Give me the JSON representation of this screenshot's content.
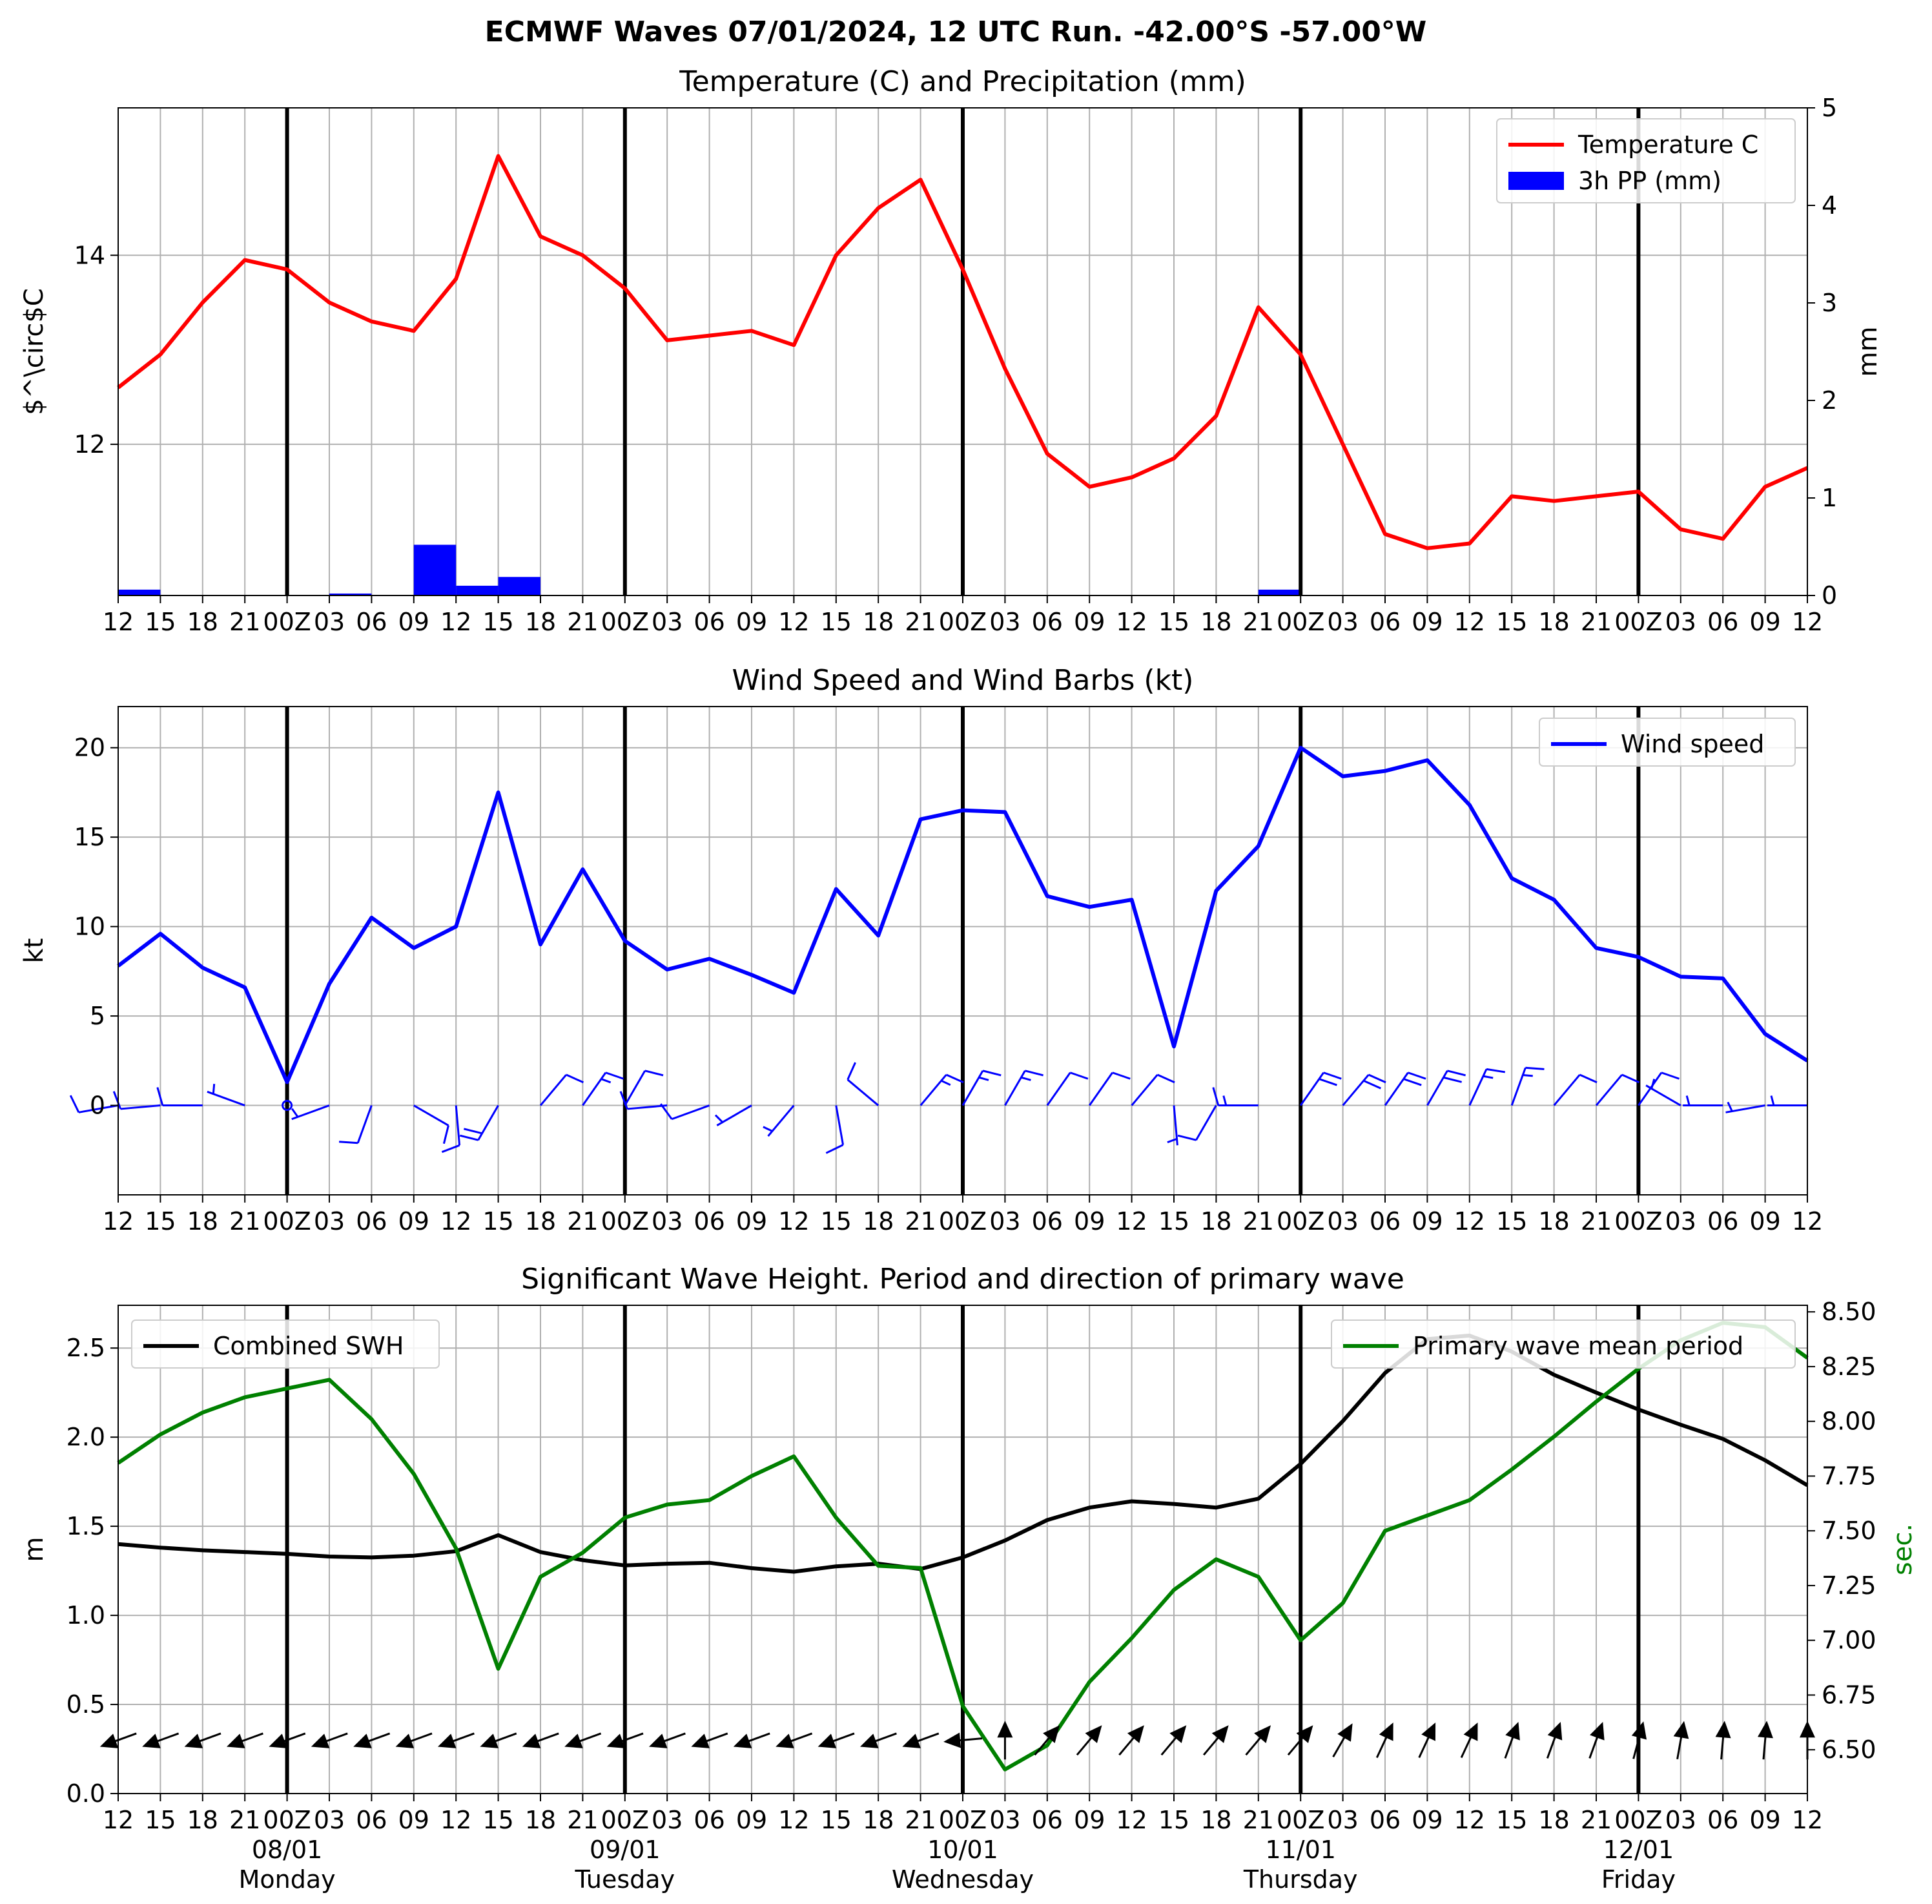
{
  "suptitle": "ECMWF Waves 07/01/2024, 12 UTC Run. -42.00°S -57.00°W",
  "time_ticks": [
    "12",
    "15",
    "18",
    "21",
    "00Z",
    "03",
    "06",
    "09",
    "12",
    "15",
    "18",
    "21",
    "00Z",
    "03",
    "06",
    "09",
    "12",
    "15",
    "18",
    "21",
    "00Z",
    "03",
    "06",
    "09",
    "12",
    "15",
    "18",
    "21",
    "00Z",
    "03",
    "06",
    "09",
    "12",
    "15",
    "18",
    "21",
    "00Z",
    "03",
    "06",
    "09",
    "12"
  ],
  "day_labels": [
    {
      "date": "08/01",
      "day": "Monday"
    },
    {
      "date": "09/01",
      "day": "Tuesday"
    },
    {
      "date": "10/01",
      "day": "Wednesday"
    },
    {
      "date": "11/01",
      "day": "Thursday"
    },
    {
      "date": "12/01",
      "day": "Friday"
    }
  ],
  "chart_data": [
    {
      "type": "line",
      "title": "Temperature (C) and Precipitation (mm)",
      "ylabel": "$^\\circ$C",
      "y2label": "mm",
      "ylim": [
        10.4,
        15.56
      ],
      "yticks": [
        12,
        14
      ],
      "y2lim": [
        0,
        5
      ],
      "y2ticks": [
        0,
        1,
        2,
        3,
        4,
        5
      ],
      "legend_position": "upper-right",
      "grid": true,
      "series": [
        {
          "name": "Temperature C",
          "color": "#ff0000",
          "values": [
            12.6,
            12.95,
            13.5,
            13.95,
            13.85,
            13.5,
            13.3,
            13.2,
            13.75,
            15.05,
            14.2,
            14.0,
            13.65,
            13.1,
            13.15,
            13.2,
            13.05,
            14.0,
            14.5,
            14.8,
            13.85,
            12.8,
            11.9,
            11.55,
            11.65,
            11.85,
            12.3,
            13.45,
            12.95,
            12.0,
            11.05,
            10.9,
            10.95,
            11.45,
            11.4,
            11.45,
            11.5,
            11.1,
            11.0,
            11.55,
            11.75
          ]
        },
        {
          "name": "3h PP (mm)",
          "color": "#0000ff",
          "kind": "bar",
          "values": [
            0.06,
            0,
            0,
            0,
            0,
            0.02,
            0,
            0.52,
            0.1,
            0.19,
            0,
            0,
            0,
            0,
            0,
            0,
            0,
            0,
            0,
            0,
            0,
            0,
            0,
            0,
            0,
            0,
            0,
            0.06,
            0,
            0,
            0,
            0,
            0,
            0,
            0,
            0,
            0,
            0,
            0,
            0,
            0
          ]
        }
      ]
    },
    {
      "type": "line",
      "title": "Wind Speed and Wind Barbs (kt)",
      "ylabel": "kt",
      "ylim": [
        -5,
        22.3
      ],
      "yticks": [
        0,
        5,
        10,
        15,
        20
      ],
      "legend_position": "upper-right",
      "grid": true,
      "series": [
        {
          "name": "Wind speed",
          "color": "#0000ff",
          "values": [
            7.8,
            9.6,
            7.7,
            6.6,
            1.3,
            6.8,
            10.5,
            8.8,
            10.0,
            17.5,
            9.0,
            13.2,
            9.2,
            7.6,
            8.2,
            7.3,
            6.3,
            12.1,
            9.5,
            16.0,
            16.5,
            16.4,
            11.7,
            11.1,
            11.5,
            3.3,
            12.0,
            14.5,
            20.0,
            18.4,
            18.7,
            19.3,
            16.8,
            12.7,
            11.5,
            8.8,
            8.3,
            7.2,
            7.1,
            4.0,
            2.5
          ]
        }
      ],
      "barb_dir_deg": [
        260,
        265,
        270,
        290,
        0,
        250,
        200,
        120,
        175,
        210,
        40,
        35,
        30,
        265,
        250,
        240,
        220,
        170,
        310,
        40,
        30,
        30,
        35,
        35,
        40,
        175,
        210,
        270,
        35,
        40,
        35,
        30,
        25,
        20,
        40,
        40,
        35,
        300,
        270,
        260,
        270
      ]
    },
    {
      "type": "line",
      "title": "Significant Wave Height. Period and direction of primary wave",
      "ylabel": "m",
      "y2label": "sec.",
      "ylim": [
        0,
        2.74
      ],
      "yticks": [
        0.0,
        0.5,
        1.0,
        1.5,
        2.0,
        2.5
      ],
      "y2lim": [
        6.3,
        8.53
      ],
      "y2ticks": [
        6.5,
        6.75,
        7.0,
        7.25,
        7.5,
        7.75,
        8.0,
        8.25,
        8.5
      ],
      "grid": true,
      "series": [
        {
          "name": "Combined SWH",
          "color": "#000000",
          "legend_position": "upper-left",
          "values": [
            1.4,
            1.38,
            1.365,
            1.355,
            1.345,
            1.33,
            1.325,
            1.335,
            1.36,
            1.45,
            1.355,
            1.31,
            1.28,
            1.29,
            1.295,
            1.265,
            1.245,
            1.275,
            1.29,
            1.26,
            1.325,
            1.42,
            1.535,
            1.605,
            1.64,
            1.625,
            1.605,
            1.655,
            1.85,
            2.09,
            2.36,
            2.55,
            2.57,
            2.48,
            2.35,
            2.25,
            2.155,
            2.07,
            1.99,
            1.87,
            1.73
          ]
        },
        {
          "name": "Primary wave mean period",
          "color": "#008000",
          "axis": "right",
          "legend_position": "upper-right",
          "values": [
            7.81,
            7.94,
            8.04,
            8.11,
            8.15,
            8.19,
            8.01,
            7.76,
            7.42,
            6.87,
            7.29,
            7.4,
            7.56,
            7.62,
            7.64,
            7.75,
            7.84,
            7.56,
            7.34,
            7.33,
            6.7,
            6.41,
            6.52,
            6.81,
            7.01,
            7.23,
            7.37,
            7.29,
            7.0,
            7.17,
            7.5,
            7.57,
            7.64,
            7.78,
            7.93,
            8.09,
            8.24,
            8.37,
            8.45,
            8.43,
            8.29
          ]
        }
      ],
      "wave_dir_deg": [
        250,
        250,
        250,
        250,
        250,
        250,
        250,
        250,
        250,
        250,
        250,
        250,
        250,
        250,
        250,
        250,
        250,
        250,
        250,
        250,
        265,
        0,
        40,
        40,
        40,
        40,
        40,
        40,
        40,
        30,
        25,
        25,
        25,
        20,
        20,
        20,
        15,
        10,
        5,
        5,
        0
      ]
    }
  ]
}
